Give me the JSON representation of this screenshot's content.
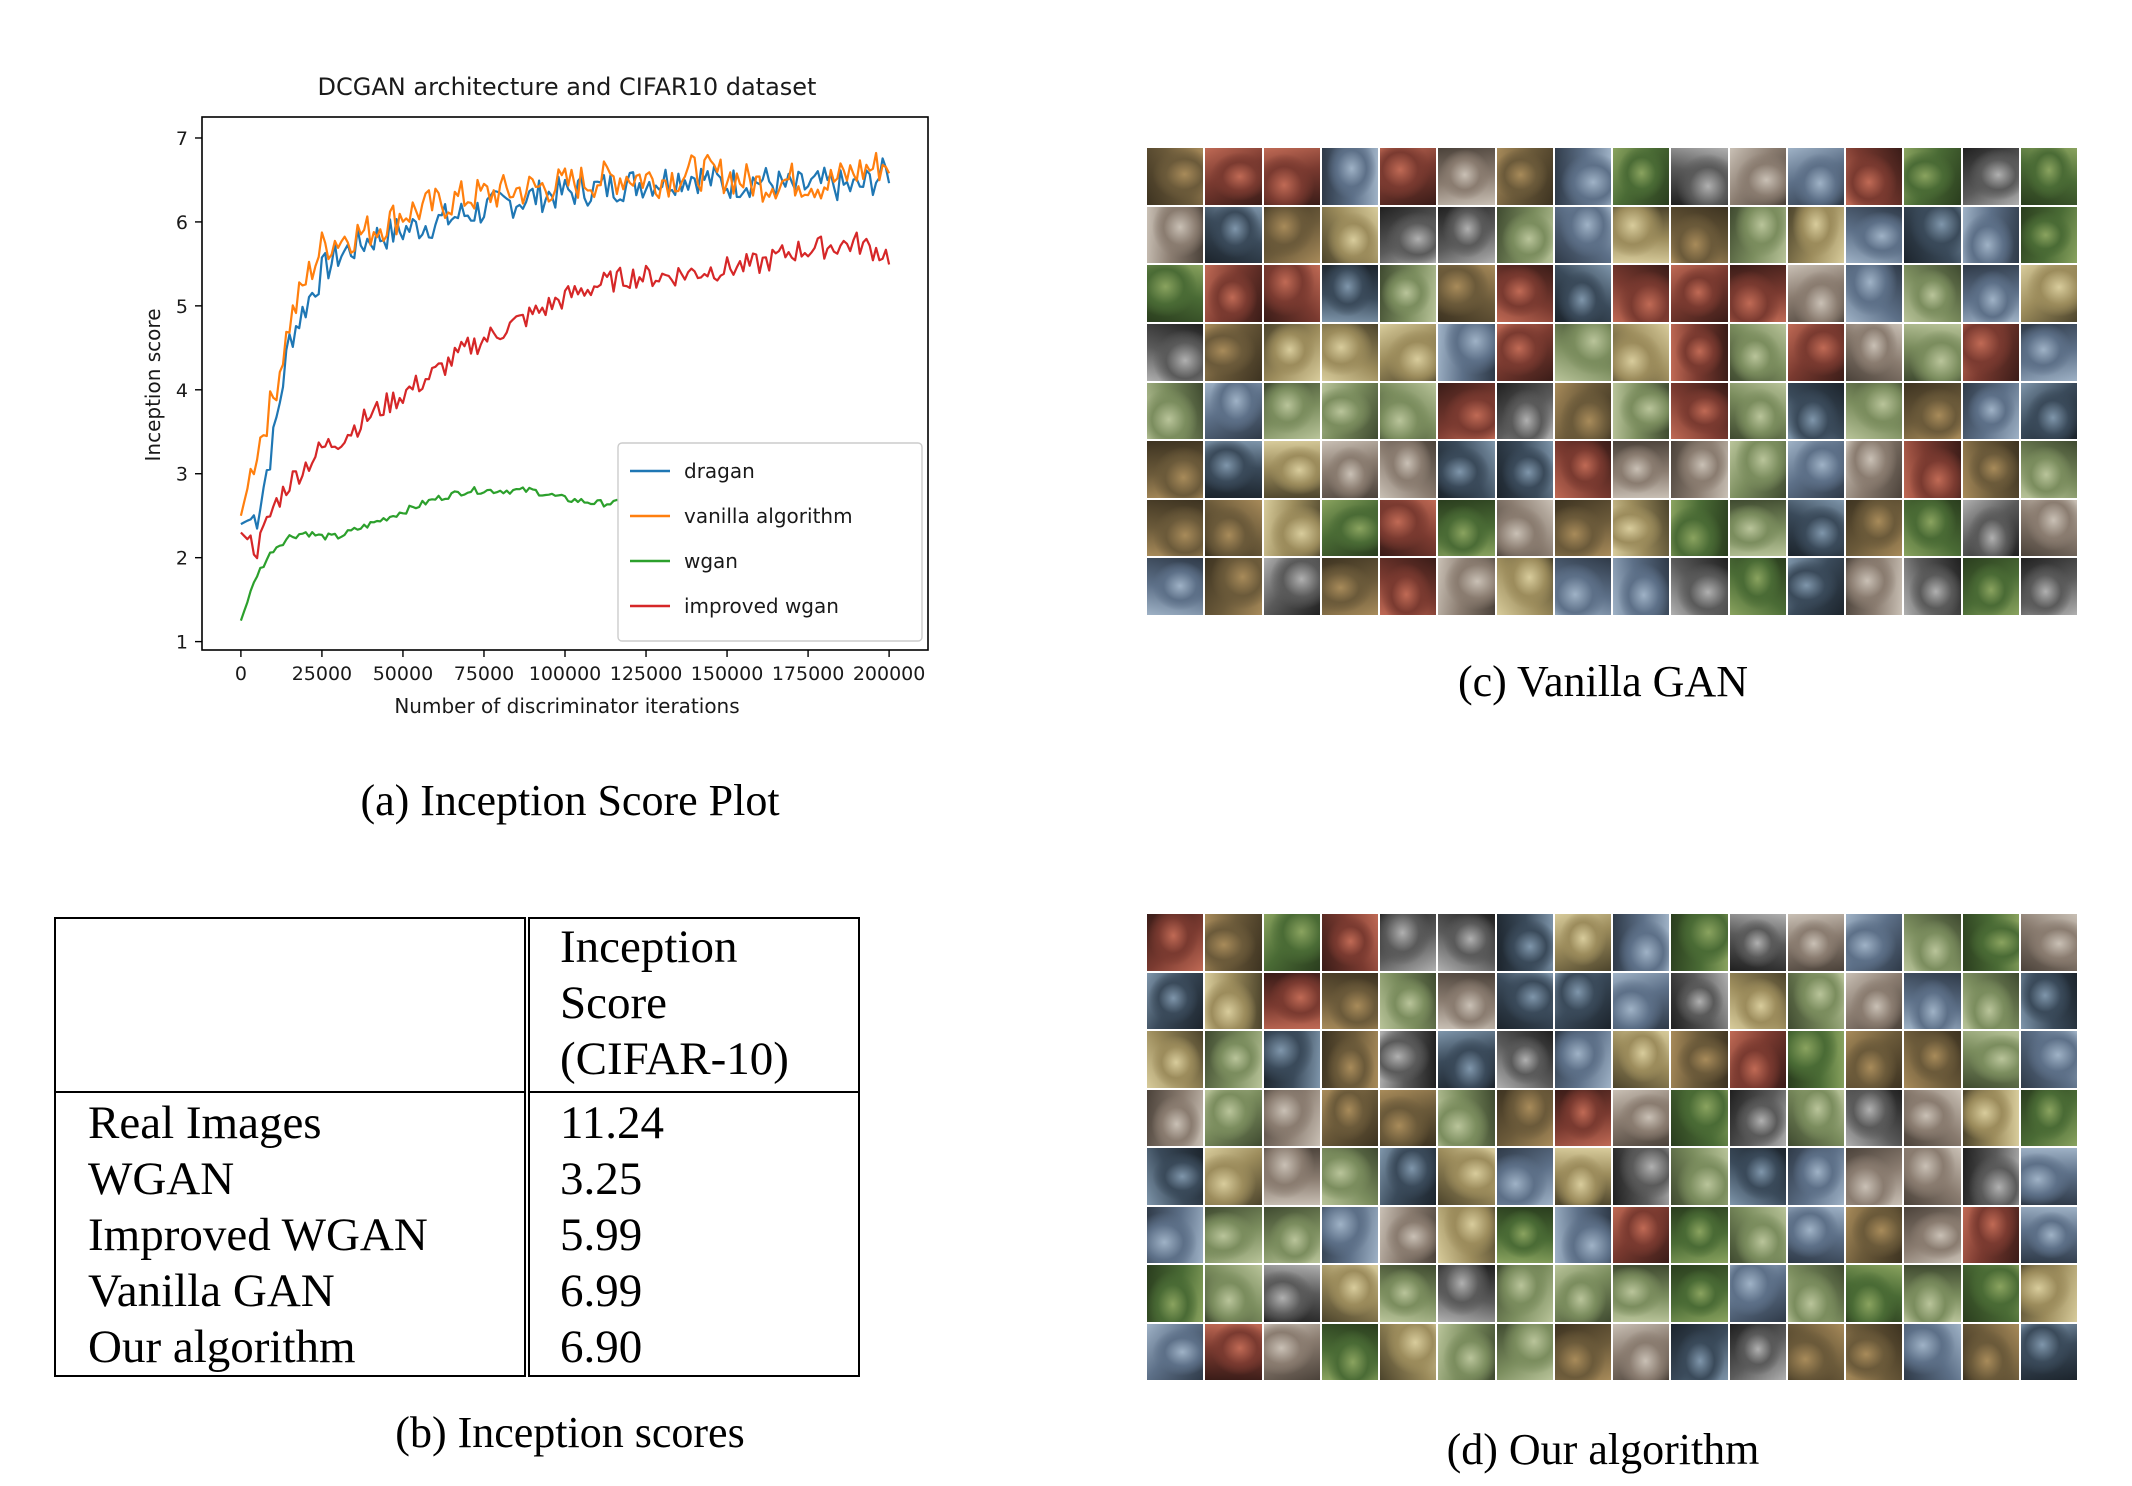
{
  "plot": {
    "chart_data": {
      "type": "line",
      "title": "DCGAN architecture and CIFAR10 dataset",
      "xlabel": "Number of discriminator iterations",
      "ylabel": "Inception score",
      "xlim": [
        -12000,
        212000
      ],
      "ylim": [
        0.9,
        7.25
      ],
      "xticks": [
        0,
        25000,
        50000,
        75000,
        100000,
        125000,
        150000,
        175000,
        200000
      ],
      "xtick_labels": [
        "0",
        "25000",
        "50000",
        "75000",
        "100000",
        "125000",
        "150000",
        "175000",
        "200000"
      ],
      "yticks": [
        1,
        2,
        3,
        4,
        5,
        6,
        7
      ],
      "ytick_labels": [
        "1",
        "2",
        "3",
        "4",
        "5",
        "6",
        "7"
      ],
      "grid": false,
      "legend_position": "bottom-right",
      "x": [
        0,
        5000,
        10000,
        15000,
        20000,
        25000,
        30000,
        40000,
        50000,
        60000,
        70000,
        80000,
        90000,
        100000,
        110000,
        120000,
        130000,
        140000,
        150000,
        160000,
        170000,
        180000,
        190000,
        200000
      ],
      "series": [
        {
          "name": "dragan",
          "color": "#1f77b4",
          "values": [
            2.4,
            2.5,
            3.4,
            4.6,
            5.0,
            5.4,
            5.6,
            5.8,
            5.9,
            6.0,
            6.1,
            6.2,
            6.3,
            6.35,
            6.4,
            6.45,
            6.5,
            6.55,
            6.45,
            6.5,
            6.4,
            6.45,
            6.4,
            6.6
          ]
        },
        {
          "name": "vanilla algorithm",
          "color": "#ff7f0e",
          "values": [
            2.5,
            3.3,
            3.9,
            4.8,
            5.3,
            5.7,
            5.8,
            5.9,
            6.1,
            6.2,
            6.3,
            6.35,
            6.4,
            6.45,
            6.5,
            6.55,
            6.5,
            6.6,
            6.55,
            6.45,
            6.5,
            6.45,
            6.6,
            6.7
          ]
        },
        {
          "name": "wgan",
          "color": "#2ca02c",
          "values": [
            1.25,
            1.8,
            2.1,
            2.25,
            2.3,
            2.25,
            2.25,
            2.4,
            2.55,
            2.7,
            2.8,
            2.8,
            2.8,
            2.7,
            2.65,
            2.65,
            2.7,
            2.75,
            2.85,
            2.9,
            2.95,
            3.0,
            3.1,
            3.2
          ]
        },
        {
          "name": "improved wgan",
          "color": "#d62728",
          "values": [
            2.3,
            2.1,
            2.6,
            2.9,
            3.1,
            3.3,
            3.4,
            3.7,
            3.95,
            4.2,
            4.5,
            4.7,
            4.9,
            5.1,
            5.25,
            5.35,
            5.35,
            5.4,
            5.45,
            5.5,
            5.65,
            5.7,
            5.75,
            5.6
          ]
        }
      ]
    },
    "caption": "(a) Inception Score Plot"
  },
  "table": {
    "header": [
      "",
      "Inception\nScore\n(CIFAR-10)"
    ],
    "header_lines": [
      "Inception",
      "Score",
      "(CIFAR-10)"
    ],
    "rows": [
      {
        "method": "Real Images",
        "score": "11.24"
      },
      {
        "method": "WGAN",
        "score": "3.25"
      },
      {
        "method": "Improved WGAN",
        "score": "5.99"
      },
      {
        "method": "Vanilla GAN",
        "score": "6.99"
      },
      {
        "method": "Our algorithm",
        "score": "6.90"
      }
    ],
    "caption": "(b) Inception scores"
  },
  "samples_c": {
    "caption": "(c) Vanilla GAN",
    "rows": 8,
    "cols": 16
  },
  "samples_d": {
    "caption": "(d) Our algorithm",
    "rows": 8,
    "cols": 16
  }
}
